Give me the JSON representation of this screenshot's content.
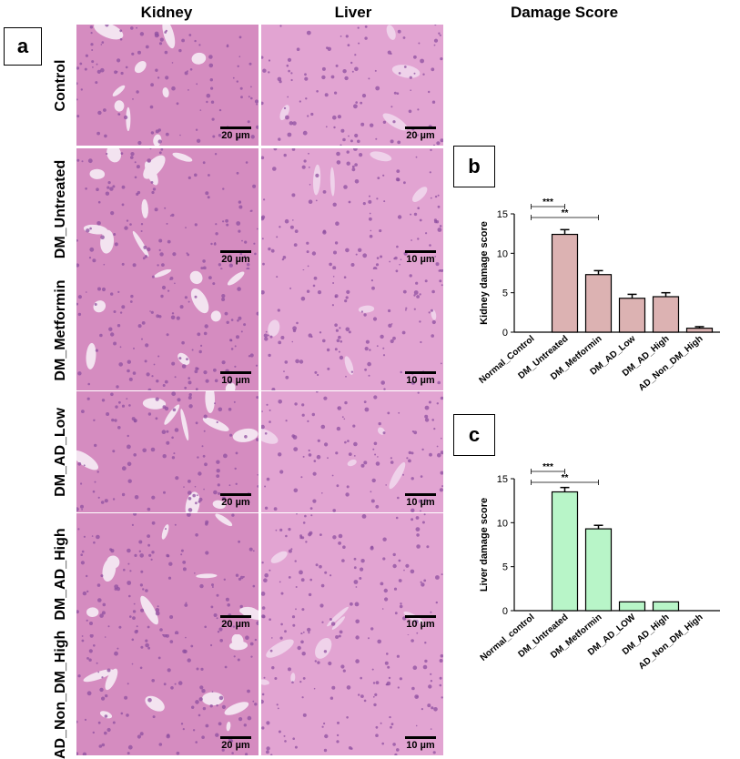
{
  "headers": {
    "kidney": "Kidney",
    "liver": "Liver",
    "damage": "Damage Score"
  },
  "panel_labels": {
    "a": "a",
    "b": "b",
    "c": "c"
  },
  "rows": [
    {
      "label": "Control",
      "kidney_scale": "20 µm",
      "liver_scale": "20 µm"
    },
    {
      "label": "DM_Untreated",
      "kidney_scale": "20 µm",
      "liver_scale": "10 µm"
    },
    {
      "label": "DM_Metformin",
      "kidney_scale": "10 µm",
      "liver_scale": "10 µm"
    },
    {
      "label": "DM_AD_Low",
      "kidney_scale": "20 µm",
      "liver_scale": "10 µm"
    },
    {
      "label": "DM_AD_High",
      "kidney_scale": "20 µm",
      "liver_scale": "10 µm"
    },
    {
      "label": "AD_Non_DM_High",
      "kidney_scale": "20 µm",
      "liver_scale": "10 µm"
    }
  ],
  "colors": {
    "kidney_bar": "#dcb2b2",
    "liver_bar": "#b8f5c8",
    "tissue_base": "#d98fc4",
    "tissue_dark": "#8e4fa0"
  },
  "chart_data": [
    {
      "type": "bar",
      "ylabel": "Kidney damage score",
      "ylim": [
        0,
        15
      ],
      "yticks": [
        0,
        5,
        10,
        15
      ],
      "categories": [
        "Normal_Control",
        "DM_Untreated",
        "DM_Metformin",
        "DM_AD_Low",
        "DM_AD_High",
        "AD_Non_DM_High"
      ],
      "values": [
        0,
        12.4,
        7.3,
        4.3,
        4.5,
        0.5
      ],
      "errors": [
        0,
        0.6,
        0.5,
        0.5,
        0.5,
        0.2
      ],
      "significance": [
        {
          "from": "Normal_Control",
          "to": "DM_Untreated",
          "label": "***"
        },
        {
          "from": "Normal_Control",
          "to": "DM_Metformin",
          "label": "**"
        }
      ],
      "grid": false
    },
    {
      "type": "bar",
      "ylabel": "Liver damage score",
      "ylim": [
        0,
        15
      ],
      "yticks": [
        0,
        5,
        10,
        15
      ],
      "categories": [
        "Normal_control",
        "DM_Untreated",
        "DM_Metformin",
        "DM_AD_LOW",
        "DM_AD_High",
        "AD_Non_DM_High"
      ],
      "values": [
        0,
        13.5,
        9.3,
        1,
        1,
        0
      ],
      "errors": [
        0,
        0.5,
        0.4,
        0,
        0,
        0
      ],
      "significance": [
        {
          "from": "Normal_control",
          "to": "DM_Untreated",
          "label": "***"
        },
        {
          "from": "Normal_control",
          "to": "DM_Metformin",
          "label": "**"
        }
      ],
      "grid": false
    }
  ]
}
